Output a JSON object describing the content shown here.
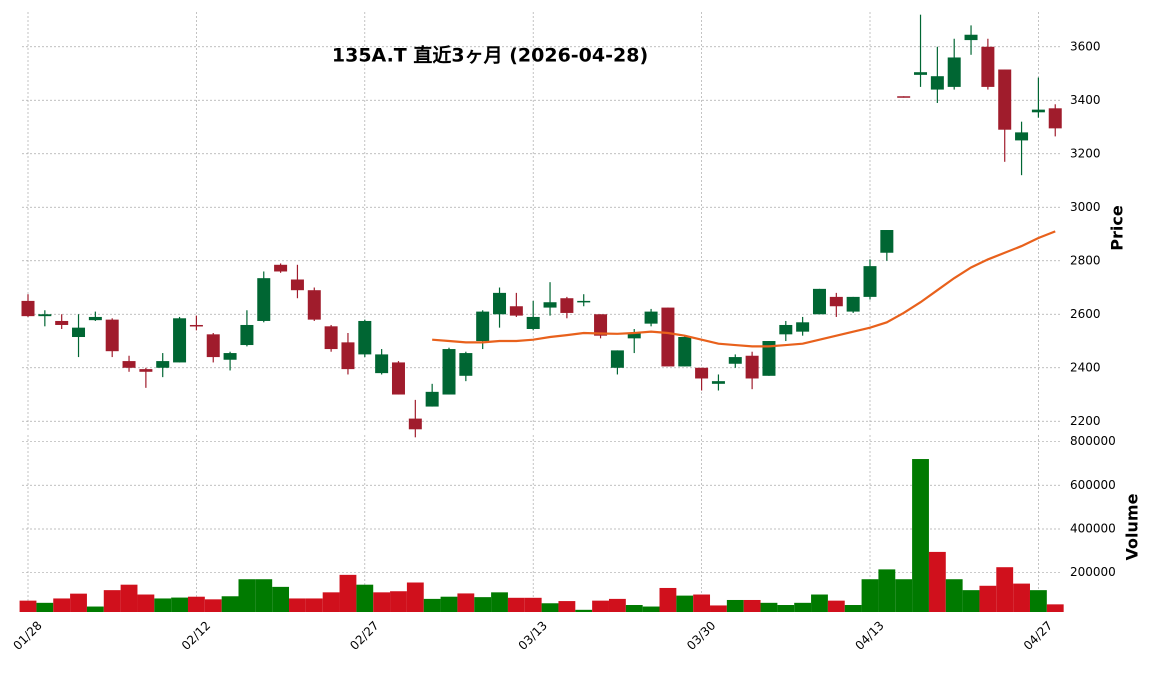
{
  "chart_data": {
    "type": "candlestick",
    "title": "135A.T  直近3ヶ月  (2026-04-28)",
    "ylabel": "Price",
    "volume_label": "Volume",
    "categories": [
      "01/28",
      null,
      null,
      null,
      null,
      null,
      null,
      null,
      null,
      null,
      "02/12",
      null,
      null,
      null,
      null,
      null,
      null,
      null,
      null,
      null,
      "02/27",
      null,
      null,
      null,
      null,
      null,
      null,
      null,
      null,
      null,
      "03/13",
      null,
      null,
      null,
      null,
      null,
      null,
      null,
      null,
      null,
      "03/30",
      null,
      null,
      null,
      null,
      null,
      null,
      null,
      null,
      null,
      "04/13",
      null,
      null,
      null,
      null,
      null,
      null,
      null,
      null,
      null,
      "04/27",
      null
    ],
    "open": [
      2650,
      2593,
      2575,
      2515,
      2578,
      2580,
      2425,
      2395,
      2400,
      2420,
      2560,
      2525,
      2430,
      2485,
      2575,
      2785,
      2730,
      2690,
      2555,
      2495,
      2450,
      2380,
      2420,
      2210,
      2255,
      2300,
      2370,
      2500,
      2600,
      2630,
      2545,
      2625,
      2660,
      2645,
      2600,
      2400,
      2510,
      2565,
      2625,
      2405,
      2400,
      2340,
      2415,
      2445,
      2370,
      2525,
      2535,
      2600,
      2665,
      2610,
      2665,
      2830,
      3415,
      3495,
      3440,
      3450,
      3625,
      3600,
      3515,
      3250,
      3355,
      3370
    ],
    "high": [
      2675,
      2615,
      2600,
      2600,
      2610,
      2585,
      2445,
      2400,
      2455,
      2590,
      2595,
      2530,
      2460,
      2615,
      2760,
      2790,
      2785,
      2700,
      2560,
      2530,
      2580,
      2470,
      2425,
      2280,
      2340,
      2475,
      2460,
      2615,
      2700,
      2680,
      2650,
      2720,
      2665,
      2675,
      2600,
      2465,
      2545,
      2620,
      2625,
      2520,
      2400,
      2375,
      2450,
      2460,
      2500,
      2575,
      2590,
      2695,
      2680,
      2665,
      2805,
      2915,
      3415,
      3720,
      3600,
      3630,
      3680,
      3630,
      3515,
      3320,
      3485,
      3385
    ],
    "low": [
      2590,
      2555,
      2545,
      2440,
      2575,
      2440,
      2385,
      2325,
      2365,
      2420,
      2540,
      2420,
      2390,
      2480,
      2570,
      2755,
      2660,
      2575,
      2460,
      2375,
      2440,
      2375,
      2300,
      2140,
      2255,
      2300,
      2350,
      2470,
      2550,
      2590,
      2540,
      2595,
      2585,
      2630,
      2510,
      2375,
      2455,
      2555,
      2405,
      2405,
      2315,
      2315,
      2400,
      2320,
      2370,
      2500,
      2520,
      2600,
      2590,
      2605,
      2655,
      2800,
      3410,
      3450,
      3390,
      3440,
      3570,
      3440,
      3170,
      3120,
      3335,
      3265
    ],
    "close": [
      2593,
      2600,
      2560,
      2550,
      2590,
      2462,
      2400,
      2385,
      2425,
      2585,
      2555,
      2440,
      2455,
      2560,
      2735,
      2760,
      2690,
      2580,
      2470,
      2395,
      2575,
      2450,
      2300,
      2170,
      2310,
      2470,
      2455,
      2610,
      2680,
      2595,
      2590,
      2645,
      2605,
      2650,
      2520,
      2465,
      2530,
      2610,
      2405,
      2515,
      2360,
      2350,
      2440,
      2360,
      2500,
      2560,
      2570,
      2695,
      2630,
      2665,
      2780,
      2915,
      3410,
      3505,
      3490,
      3560,
      3645,
      3450,
      3290,
      3280,
      3365,
      3295
    ],
    "up_color": "#006633",
    "down_color": "#a01c2c",
    "moving_average": {
      "color": "#e8611c",
      "values": [
        null,
        null,
        null,
        null,
        null,
        null,
        null,
        null,
        null,
        null,
        null,
        null,
        null,
        null,
        null,
        null,
        null,
        null,
        null,
        null,
        null,
        null,
        null,
        null,
        2505,
        2500,
        2495,
        2495,
        2500,
        2500,
        2505,
        2515,
        2522,
        2530,
        2528,
        2527,
        2530,
        2535,
        2530,
        2520,
        2505,
        2490,
        2485,
        2480,
        2480,
        2485,
        2490,
        2505,
        2520,
        2535,
        2550,
        2570,
        2605,
        2645,
        2690,
        2735,
        2775,
        2805,
        2830,
        2855,
        2885,
        2910
      ]
    },
    "volume": {
      "up_color": "#007a00",
      "down_color": "#d0101c",
      "values": [
        72000,
        62000,
        82000,
        104000,
        45000,
        120000,
        145000,
        100000,
        82000,
        86000,
        90000,
        78000,
        92000,
        170000,
        170000,
        135000,
        82000,
        82000,
        110000,
        190000,
        145000,
        110000,
        115000,
        155000,
        80000,
        90000,
        105000,
        88000,
        110000,
        85000,
        85000,
        60000,
        70000,
        30000,
        72000,
        80000,
        52000,
        45000,
        130000,
        95000,
        100000,
        50000,
        75000,
        75000,
        62000,
        52000,
        62000,
        100000,
        72000,
        52000,
        170000,
        215000,
        170000,
        720000,
        295000,
        170000,
        120000,
        140000,
        225000,
        150000,
        120000,
        55000
      ]
    },
    "ylim": [
      2130,
      3730
    ],
    "yticks": [
      2200,
      2400,
      2600,
      2800,
      3000,
      3200,
      3400,
      3600
    ],
    "volume_ylim": [
      20000,
      830000
    ],
    "volume_yticks": [
      200000,
      400000,
      600000,
      800000
    ],
    "grid": true
  }
}
